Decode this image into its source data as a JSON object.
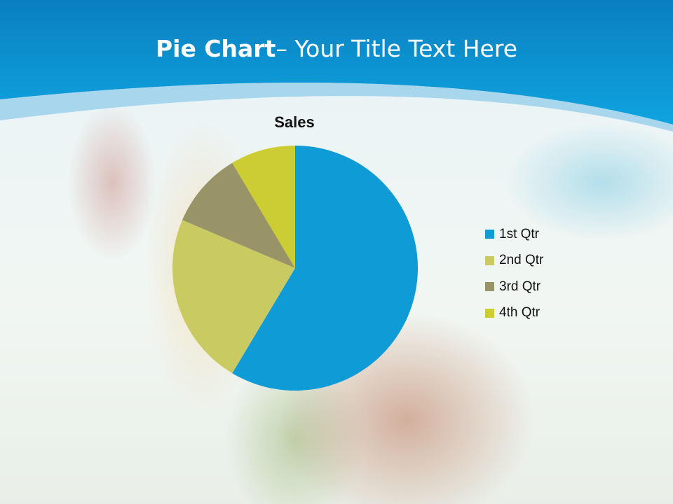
{
  "slide": {
    "title_bold": "Pie Chart",
    "title_rest": "– Your Title Text Here"
  },
  "colors": {
    "header": "#0B8FD0",
    "header_light": "#8CCAEA"
  },
  "chart_data": {
    "type": "pie",
    "title": "Sales",
    "categories": [
      "1st Qtr",
      "2nd Qtr",
      "3rd Qtr",
      "4th Qtr"
    ],
    "values": [
      8.2,
      3.2,
      1.4,
      1.2
    ],
    "colors": [
      "#0E9BD6",
      "#CACA62",
      "#989468",
      "#CCCC33"
    ],
    "legend": "right"
  }
}
